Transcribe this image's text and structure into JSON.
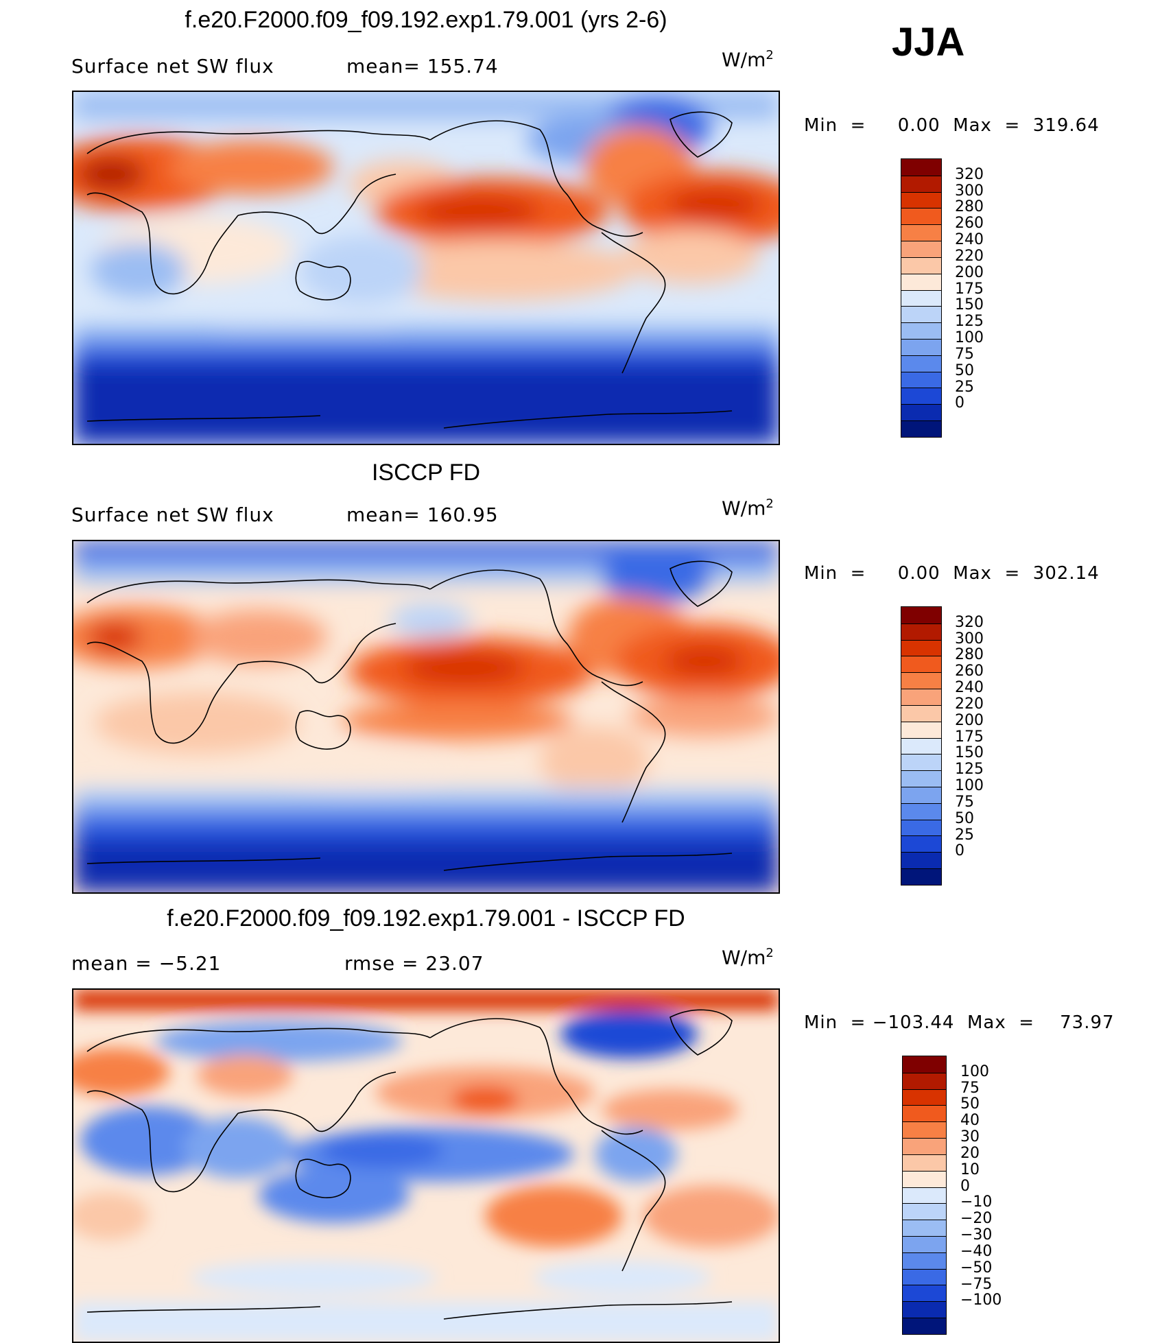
{
  "season": "JJA",
  "units_base": "W/m",
  "units_exp": "2",
  "panels": [
    {
      "title": "f.e20.F2000.f09_f09.192.exp1.79.001 (yrs 2-6)",
      "left_label": "Surface net SW flux",
      "mid_label": "mean=  155.74",
      "minmax": "Min  =     0.00  Max  =  319.64",
      "scale": "absolute"
    },
    {
      "title": "ISCCP FD",
      "left_label": "Surface net SW flux",
      "mid_label": "mean=  160.95",
      "minmax": "Min  =     0.00  Max  =  302.14",
      "scale": "absolute"
    },
    {
      "title": "f.e20.F2000.f09_f09.192.exp1.79.001 - ISCCP FD",
      "left_label": "mean  =    −5.21",
      "mid_label": "rmse  =    23.07",
      "minmax": "Min  = −103.44  Max  =    73.97",
      "scale": "difference"
    }
  ],
  "chart_data": [
    {
      "type": "heatmap",
      "title": "f.e20.F2000.f09_f09.192.exp1.79.001 (yrs 2-6)",
      "variable": "Surface net SW flux",
      "units": "W/m2",
      "mean": 155.74,
      "min": 0.0,
      "max": 319.64,
      "colorbar_levels": [
        "320",
        "300",
        "280",
        "260",
        "240",
        "220",
        "200",
        "175",
        "150",
        "125",
        "100",
        "75",
        "50",
        "25",
        "0"
      ],
      "colorbar_colors": [
        "#7f0000",
        "#b21a00",
        "#d83300",
        "#f05a1e",
        "#f78045",
        "#f9a37a",
        "#fbc8a8",
        "#fde9d9",
        "#dbe9fb",
        "#bcd4f8",
        "#9bbdf3",
        "#7ca4ef",
        "#5b89ec",
        "#3a6ae5",
        "#1c48d6",
        "#0a2bb0",
        "#00157a"
      ]
    },
    {
      "type": "heatmap",
      "title": "ISCCP FD",
      "variable": "Surface net SW flux",
      "units": "W/m2",
      "mean": 160.95,
      "min": 0.0,
      "max": 302.14,
      "colorbar_levels": [
        "320",
        "300",
        "280",
        "260",
        "240",
        "220",
        "200",
        "175",
        "150",
        "125",
        "100",
        "75",
        "50",
        "25",
        "0"
      ],
      "colorbar_colors": [
        "#7f0000",
        "#b21a00",
        "#d83300",
        "#f05a1e",
        "#f78045",
        "#f9a37a",
        "#fbc8a8",
        "#fde9d9",
        "#dbe9fb",
        "#bcd4f8",
        "#9bbdf3",
        "#7ca4ef",
        "#5b89ec",
        "#3a6ae5",
        "#1c48d6",
        "#0a2bb0",
        "#00157a"
      ]
    },
    {
      "type": "heatmap",
      "title": "f.e20.F2000.f09_f09.192.exp1.79.001 - ISCCP FD",
      "variable": "difference",
      "units": "W/m2",
      "mean": -5.21,
      "rmse": 23.07,
      "min": -103.44,
      "max": 73.97,
      "colorbar_levels": [
        "100",
        "75",
        "50",
        "40",
        "30",
        "20",
        "10",
        "0",
        "−10",
        "−20",
        "−30",
        "−40",
        "−50",
        "−75",
        "−100"
      ],
      "colorbar_colors": [
        "#7f0000",
        "#b21a00",
        "#d83300",
        "#f05a1e",
        "#f78045",
        "#f9a37a",
        "#fbc8a8",
        "#fde9d9",
        "#dbe9fb",
        "#bcd4f8",
        "#9bbdf3",
        "#7ca4ef",
        "#5b89ec",
        "#3a6ae5",
        "#1c48d6",
        "#0a2bb0",
        "#00157a"
      ]
    }
  ]
}
